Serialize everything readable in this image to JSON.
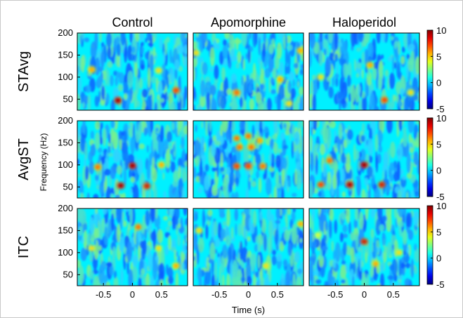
{
  "chart_data": {
    "type": "heatmap",
    "columns": [
      "Control",
      "Apomorphine",
      "Haloperidol"
    ],
    "rows": [
      "STAvg",
      "AvgST",
      "ITC"
    ],
    "ylabel": "Frequency (Hz)",
    "xlabel": "Time (s)",
    "xlim": [
      -0.95,
      0.95
    ],
    "ylim": [
      25,
      200
    ],
    "xticks": [
      -0.5,
      0,
      0.5
    ],
    "xtick_labels": [
      "-0.5",
      "0",
      "0.5"
    ],
    "yticks": [
      50,
      100,
      150,
      200
    ],
    "ytick_labels": [
      "50",
      "100",
      "150",
      "200"
    ],
    "colorbar": {
      "range": [
        -5,
        10
      ],
      "ticks": [
        -5,
        0,
        5,
        10
      ],
      "tick_labels": [
        "-5",
        "0",
        "5",
        "10"
      ],
      "colormap": "jet"
    },
    "grid": false,
    "panels": [
      {
        "row": "STAvg",
        "column": "Control",
        "hotspots": [
          {
            "t": -0.25,
            "f": 47,
            "value": 10
          },
          {
            "t": -0.7,
            "f": 117,
            "value": 6
          },
          {
            "t": 0.75,
            "f": 70,
            "value": 8
          },
          {
            "t": 0.45,
            "f": 115,
            "value": 5
          }
        ]
      },
      {
        "row": "STAvg",
        "column": "Apomorphine",
        "hotspots": [
          {
            "t": -0.2,
            "f": 65,
            "value": 7
          },
          {
            "t": 0.55,
            "f": 95,
            "value": 6
          },
          {
            "t": -0.9,
            "f": 155,
            "value": 5
          },
          {
            "t": 0.9,
            "f": 160,
            "value": 6
          },
          {
            "t": 0.7,
            "f": 40,
            "value": 5
          }
        ]
      },
      {
        "row": "STAvg",
        "column": "Haloperidol",
        "hotspots": [
          {
            "t": 0.35,
            "f": 48,
            "value": 8
          },
          {
            "t": 0.1,
            "f": 127,
            "value": 6
          },
          {
            "t": -0.75,
            "f": 100,
            "value": 5
          },
          {
            "t": 0.8,
            "f": 65,
            "value": 5
          }
        ]
      },
      {
        "row": "AvgST",
        "column": "Control",
        "hotspots": [
          {
            "t": 0.0,
            "f": 98,
            "value": 10
          },
          {
            "t": -0.2,
            "f": 53,
            "value": 10
          },
          {
            "t": 0.25,
            "f": 52,
            "value": 9
          },
          {
            "t": -0.6,
            "f": 95,
            "value": 7
          },
          {
            "t": 0.5,
            "f": 100,
            "value": 6
          }
        ]
      },
      {
        "row": "AvgST",
        "column": "Apomorphine",
        "hotspots": [
          {
            "t": -0.2,
            "f": 160,
            "value": 7
          },
          {
            "t": 0.0,
            "f": 165,
            "value": 7
          },
          {
            "t": 0.2,
            "f": 155,
            "value": 6
          },
          {
            "t": -0.15,
            "f": 140,
            "value": 7
          },
          {
            "t": 0.05,
            "f": 140,
            "value": 7
          },
          {
            "t": -0.2,
            "f": 97,
            "value": 8
          },
          {
            "t": 0.0,
            "f": 97,
            "value": 8
          },
          {
            "t": 0.25,
            "f": 97,
            "value": 7
          }
        ]
      },
      {
        "row": "AvgST",
        "column": "Haloperidol",
        "hotspots": [
          {
            "t": 0.0,
            "f": 100,
            "value": 10
          },
          {
            "t": -0.25,
            "f": 55,
            "value": 10
          },
          {
            "t": 0.3,
            "f": 55,
            "value": 9
          },
          {
            "t": -0.75,
            "f": 55,
            "value": 8
          },
          {
            "t": -0.6,
            "f": 110,
            "value": 7
          }
        ]
      },
      {
        "row": "ITC",
        "column": "Control",
        "hotspots": [
          {
            "t": 0.1,
            "f": 158,
            "value": 7
          },
          {
            "t": 0.75,
            "f": 70,
            "value": 6
          },
          {
            "t": -0.7,
            "f": 110,
            "value": 5
          },
          {
            "t": 0.45,
            "f": 110,
            "value": 5
          }
        ]
      },
      {
        "row": "ITC",
        "column": "Apomorphine",
        "hotspots": [
          {
            "t": 0.9,
            "f": 165,
            "value": 6
          },
          {
            "t": -0.85,
            "f": 150,
            "value": 5
          },
          {
            "t": 0.3,
            "f": 70,
            "value": 5
          }
        ]
      },
      {
        "row": "ITC",
        "column": "Haloperidol",
        "hotspots": [
          {
            "t": 0.0,
            "f": 125,
            "value": 9
          },
          {
            "t": 0.2,
            "f": 75,
            "value": 6
          },
          {
            "t": 0.6,
            "f": 100,
            "value": 5
          },
          {
            "t": -0.8,
            "f": 140,
            "value": 4
          }
        ]
      }
    ]
  }
}
